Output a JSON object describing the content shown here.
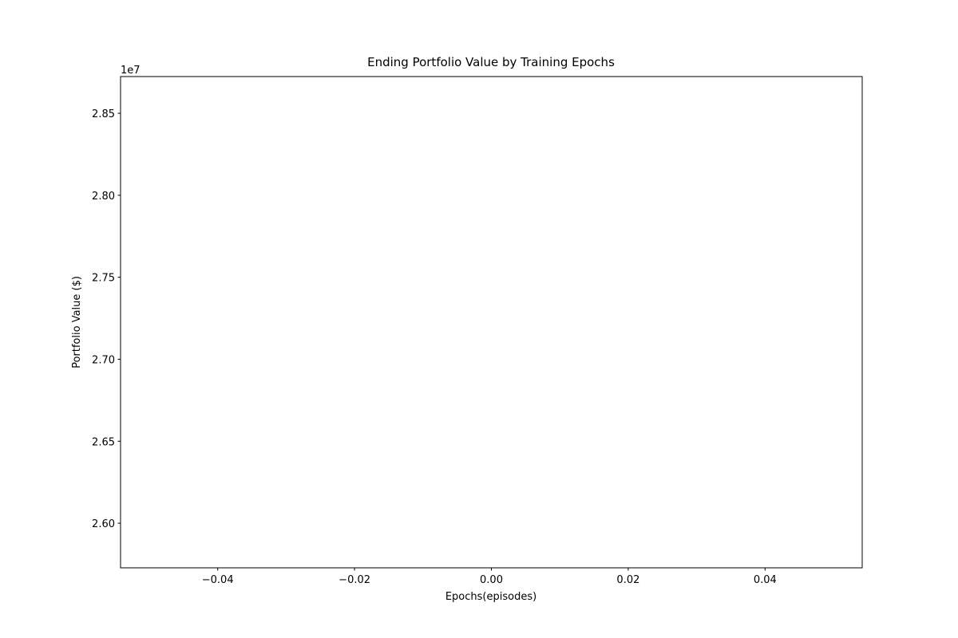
{
  "chart_data": {
    "type": "line",
    "title": "Ending Portfolio Value by Training Epochs",
    "xlabel": "Epochs(episodes)",
    "ylabel": "Portfolio Value ($)",
    "y_offset_label": "1e7",
    "xlim": [
      -0.0542,
      0.0542
    ],
    "xticks": [
      {
        "value": -0.04,
        "label": "−0.04"
      },
      {
        "value": -0.02,
        "label": "−0.02"
      },
      {
        "value": 0,
        "label": "0.00"
      },
      0.02,
      0.04
    ],
    "ylim": [
      25728000,
      28724000
    ],
    "yticks": [
      {
        "value": 26000000,
        "label": "2.60"
      },
      {
        "value": 26500000,
        "label": "2.65"
      },
      {
        "value": 27000000,
        "label": "2.70"
      },
      {
        "value": 27500000,
        "label": "2.75"
      },
      {
        "value": 28000000,
        "label": "2.80"
      },
      {
        "value": 28500000,
        "label": "2.85"
      }
    ],
    "grid": false
  }
}
